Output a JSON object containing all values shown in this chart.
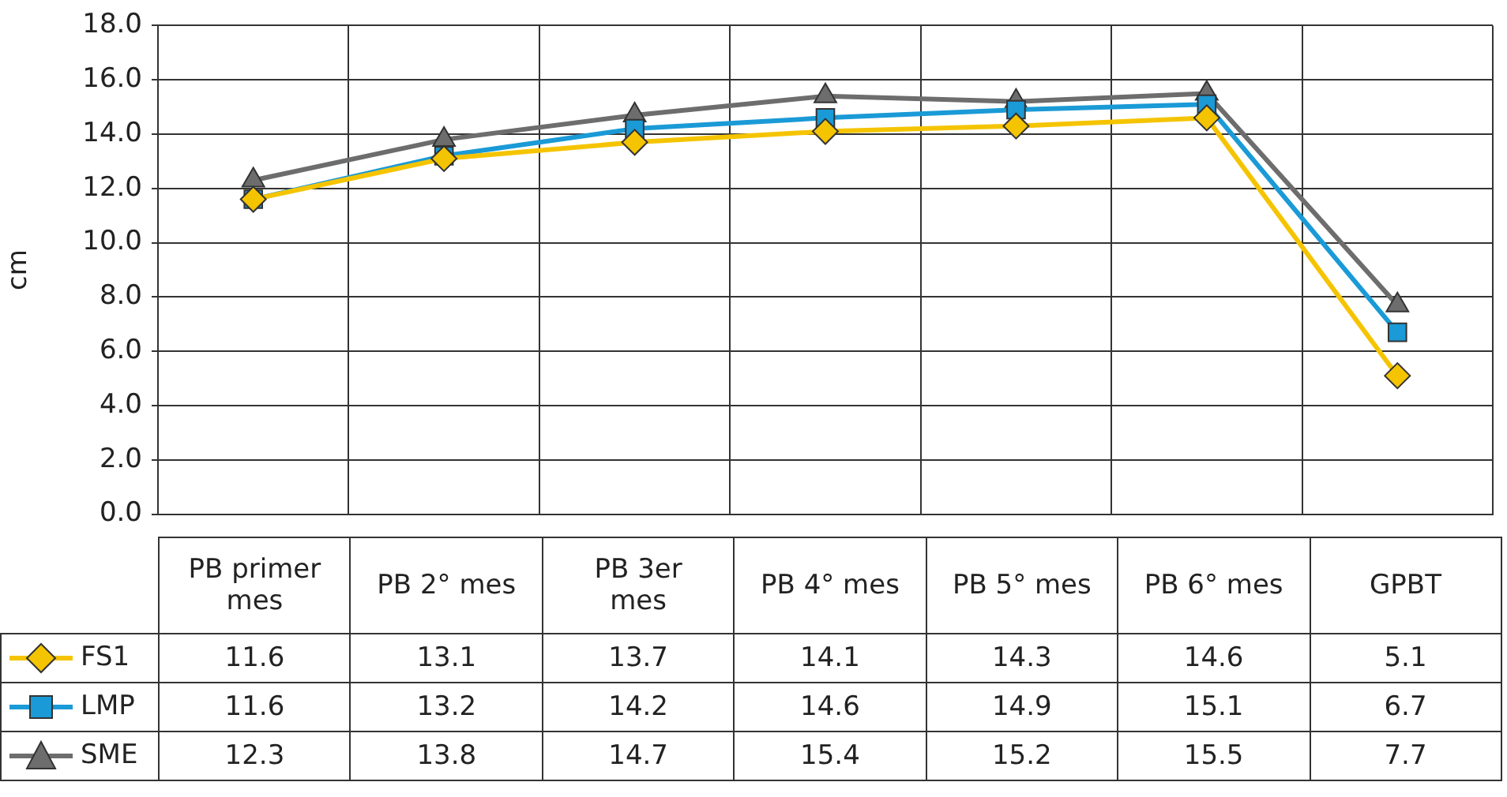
{
  "chart_data": {
    "type": "line",
    "ylabel": "cm",
    "categories": [
      "PB primer mes",
      "PB 2° mes",
      "PB 3er mes",
      "PB 4° mes",
      "PB 5° mes",
      "PB 6° mes",
      "GPBT"
    ],
    "series": [
      {
        "name": "FS1",
        "color": "#f5c400",
        "marker": "diamond",
        "values": [
          11.6,
          13.1,
          13.7,
          14.1,
          14.3,
          14.6,
          5.1
        ]
      },
      {
        "name": "LMP",
        "color": "#1a9ad6",
        "marker": "square",
        "values": [
          11.6,
          13.2,
          14.2,
          14.6,
          14.9,
          15.1,
          6.7
        ]
      },
      {
        "name": "SME",
        "color": "#6d6d6d",
        "marker": "triangle",
        "values": [
          12.3,
          13.8,
          14.7,
          15.4,
          15.2,
          15.5,
          7.7
        ]
      }
    ],
    "ylim": [
      0,
      18
    ],
    "yticks": [
      {
        "value": 0,
        "label": "0.0"
      },
      {
        "value": 2,
        "label": "2.0"
      },
      {
        "value": 4,
        "label": "4.0"
      },
      {
        "value": 6,
        "label": "6.0"
      },
      {
        "value": 8,
        "label": "8.0"
      },
      {
        "value": 10,
        "label": "10.0"
      },
      {
        "value": 12,
        "label": "12.0"
      },
      {
        "value": 14,
        "label": "14.0"
      },
      {
        "value": 16,
        "label": "16.0"
      },
      {
        "value": 18,
        "label": "18.0"
      }
    ],
    "grid": true,
    "legend": "bottom left",
    "data_labels": true
  }
}
